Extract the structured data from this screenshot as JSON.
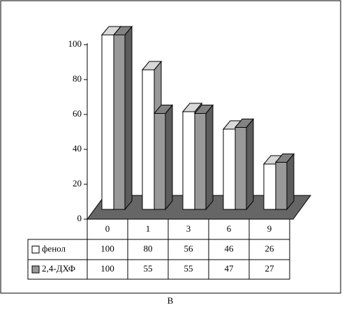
{
  "chart_data": {
    "type": "bar3d",
    "caption": "B",
    "categories": [
      "0",
      "1",
      "3",
      "6",
      "9"
    ],
    "series": [
      {
        "name": "фенол",
        "color": "#ffffff",
        "values": [
          100,
          80,
          56,
          46,
          26
        ]
      },
      {
        "name": "2,4-ДХФ",
        "color": "#999999",
        "values": [
          100,
          55,
          55,
          47,
          27
        ]
      }
    ],
    "ylim": [
      0,
      100
    ],
    "yticks": [
      0,
      20,
      40,
      60,
      80,
      100
    ]
  }
}
